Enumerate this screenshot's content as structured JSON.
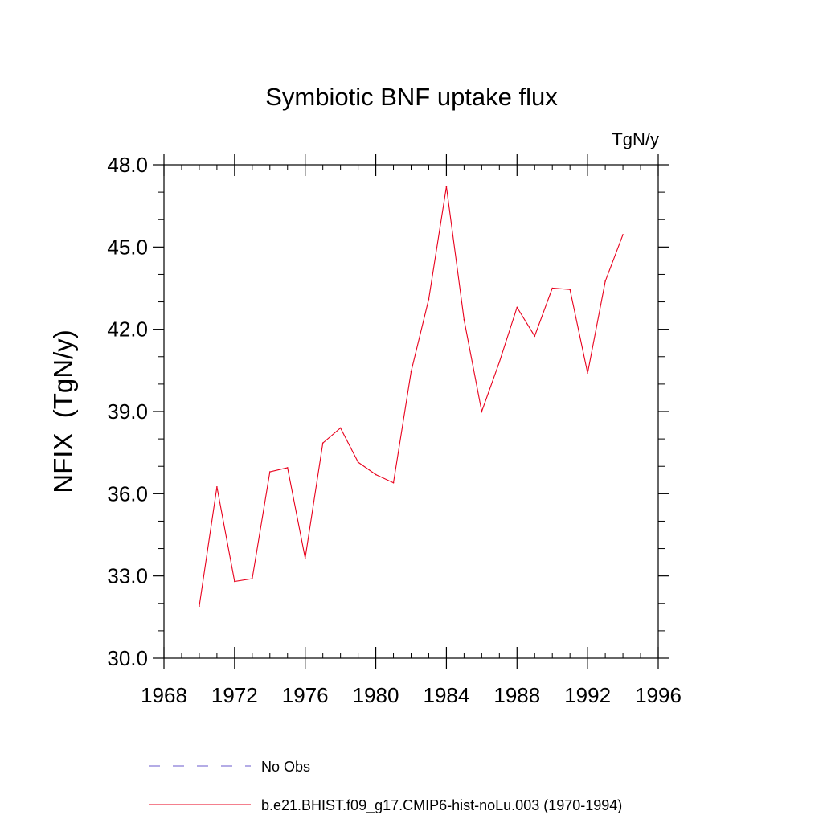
{
  "chart_data": {
    "type": "line",
    "title": "Symbiotic BNF uptake flux",
    "units_label": "TgN/y",
    "xlabel": "",
    "ylabel": "NFIX  (TgN/y)",
    "xlim": [
      1968,
      1996
    ],
    "ylim": [
      30.0,
      48.0
    ],
    "x_ticks": [
      1968,
      1972,
      1976,
      1980,
      1984,
      1988,
      1992,
      1996
    ],
    "x_tick_labels": [
      "1968",
      "1972",
      "1976",
      "1980",
      "1984",
      "1988",
      "1992",
      "1996"
    ],
    "y_ticks": [
      30.0,
      33.0,
      36.0,
      39.0,
      42.0,
      45.0,
      48.0
    ],
    "y_tick_labels": [
      "30.0",
      "33.0",
      "36.0",
      "39.0",
      "42.0",
      "45.0",
      "48.0"
    ],
    "x_minor_step": 1,
    "y_minor_step": 1,
    "grid": false,
    "series": [
      {
        "name": "b.e21.BHIST.f09_g17.CMIP6-hist-noLu.003 (1970-1994)",
        "color": "#e8001c",
        "style": "solid",
        "x": [
          1970,
          1971,
          1972,
          1973,
          1974,
          1975,
          1976,
          1977,
          1978,
          1979,
          1980,
          1981,
          1982,
          1983,
          1984,
          1985,
          1986,
          1987,
          1988,
          1989,
          1990,
          1991,
          1992,
          1993,
          1994
        ],
        "values": [
          31.9,
          36.25,
          32.8,
          32.9,
          36.8,
          36.95,
          33.65,
          37.85,
          38.4,
          37.15,
          36.7,
          36.4,
          40.45,
          43.1,
          47.2,
          42.35,
          39.0,
          40.8,
          42.8,
          41.75,
          43.5,
          43.45,
          40.4,
          43.75,
          45.45
        ]
      }
    ],
    "legend": {
      "placement": "bottom",
      "entries": [
        {
          "label": "No Obs",
          "color": "#6a5acd",
          "style": "dashed"
        },
        {
          "label": "b.e21.BHIST.f09_g17.CMIP6-hist-noLu.003 (1970-1994)",
          "color": "#e8001c",
          "style": "solid"
        }
      ]
    }
  }
}
